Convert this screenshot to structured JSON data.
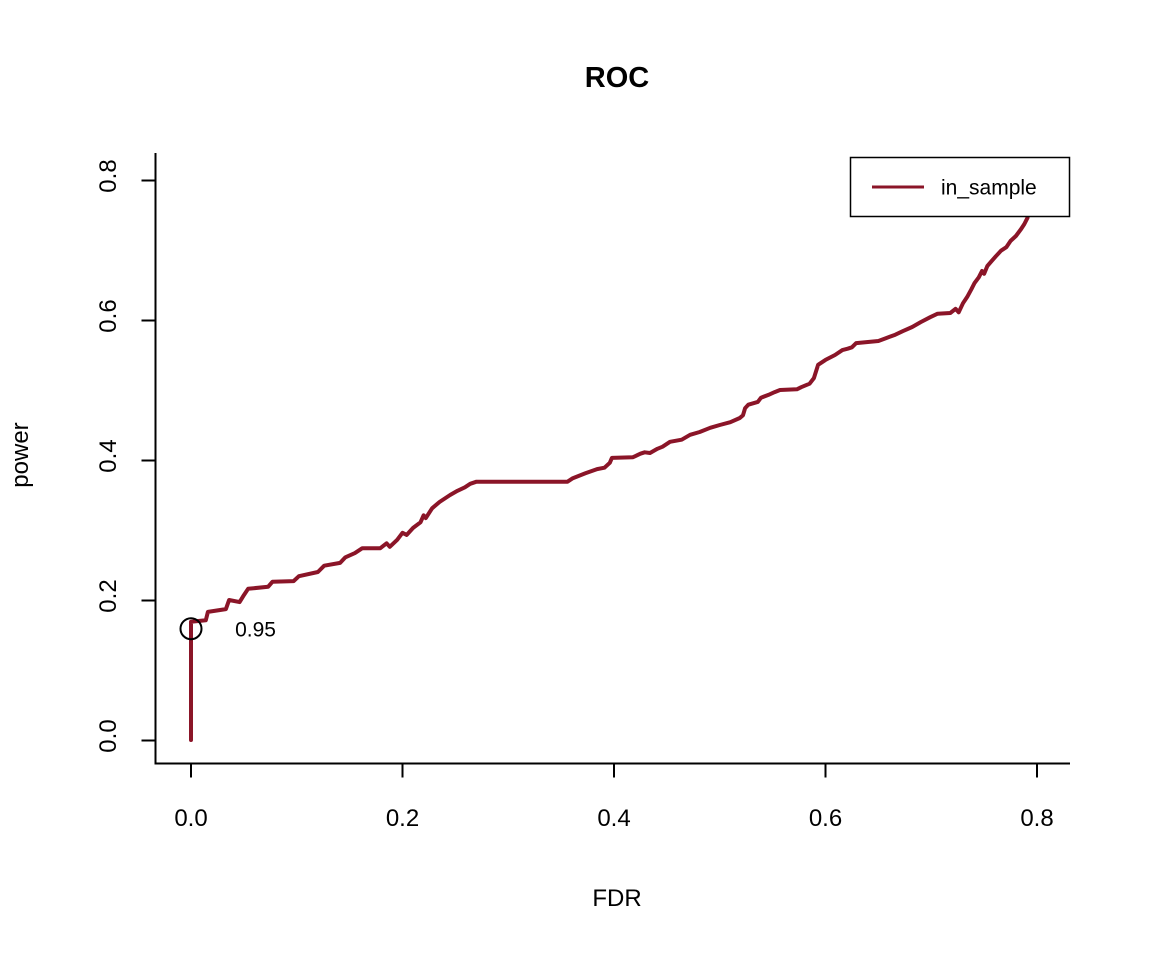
{
  "chart_data": {
    "type": "line",
    "title": "ROC",
    "xlabel": "FDR",
    "ylabel": "power",
    "xlim": [
      -0.03,
      0.83
    ],
    "ylim": [
      -0.03,
      0.84
    ],
    "grid": false,
    "x_tick_values": [
      0.0,
      0.2,
      0.4,
      0.6,
      0.8
    ],
    "x_tick_labels": [
      "0.0",
      "0.2",
      "0.4",
      "0.6",
      "0.8"
    ],
    "y_tick_values": [
      0.0,
      0.2,
      0.4,
      0.6,
      0.8
    ],
    "y_tick_labels": [
      "0.0",
      "0.2",
      "0.4",
      "0.6",
      "0.8"
    ],
    "legend": {
      "position": "top-right",
      "entries": [
        {
          "label": "in_sample",
          "color": "#8B1528"
        }
      ]
    },
    "annotations": [
      {
        "text": "0.95",
        "x": 0.061,
        "y": 0.148,
        "color": "#8B1528"
      }
    ],
    "markers": [
      {
        "shape": "open-circle",
        "x": 0.0,
        "y": 0.159,
        "stroke": "#000000"
      }
    ],
    "series": [
      {
        "name": "in_sample",
        "color": "#8B1528",
        "points": [
          [
            0.0,
            0.0
          ],
          [
            0.0,
            0.169
          ],
          [
            0.014,
            0.171
          ],
          [
            0.016,
            0.183
          ],
          [
            0.033,
            0.187
          ],
          [
            0.036,
            0.2
          ],
          [
            0.046,
            0.197
          ],
          [
            0.05,
            0.207
          ],
          [
            0.054,
            0.216
          ],
          [
            0.073,
            0.219
          ],
          [
            0.077,
            0.226
          ],
          [
            0.097,
            0.227
          ],
          [
            0.102,
            0.234
          ],
          [
            0.12,
            0.24
          ],
          [
            0.126,
            0.249
          ],
          [
            0.141,
            0.253
          ],
          [
            0.146,
            0.261
          ],
          [
            0.155,
            0.267
          ],
          [
            0.162,
            0.274
          ],
          [
            0.179,
            0.274
          ],
          [
            0.185,
            0.281
          ],
          [
            0.188,
            0.276
          ],
          [
            0.195,
            0.286
          ],
          [
            0.2,
            0.296
          ],
          [
            0.204,
            0.293
          ],
          [
            0.21,
            0.303
          ],
          [
            0.217,
            0.311
          ],
          [
            0.22,
            0.321
          ],
          [
            0.222,
            0.317
          ],
          [
            0.228,
            0.331
          ],
          [
            0.235,
            0.34
          ],
          [
            0.245,
            0.35
          ],
          [
            0.252,
            0.356
          ],
          [
            0.259,
            0.361
          ],
          [
            0.264,
            0.366
          ],
          [
            0.27,
            0.369
          ],
          [
            0.356,
            0.369
          ],
          [
            0.361,
            0.374
          ],
          [
            0.373,
            0.381
          ],
          [
            0.384,
            0.387
          ],
          [
            0.391,
            0.389
          ],
          [
            0.396,
            0.396
          ],
          [
            0.398,
            0.403
          ],
          [
            0.418,
            0.404
          ],
          [
            0.425,
            0.409
          ],
          [
            0.429,
            0.411
          ],
          [
            0.434,
            0.41
          ],
          [
            0.441,
            0.416
          ],
          [
            0.446,
            0.419
          ],
          [
            0.453,
            0.426
          ],
          [
            0.464,
            0.429
          ],
          [
            0.472,
            0.436
          ],
          [
            0.481,
            0.44
          ],
          [
            0.491,
            0.446
          ],
          [
            0.5,
            0.45
          ],
          [
            0.51,
            0.454
          ],
          [
            0.519,
            0.46
          ],
          [
            0.522,
            0.464
          ],
          [
            0.524,
            0.474
          ],
          [
            0.527,
            0.479
          ],
          [
            0.536,
            0.483
          ],
          [
            0.539,
            0.489
          ],
          [
            0.546,
            0.493
          ],
          [
            0.552,
            0.497
          ],
          [
            0.557,
            0.5
          ],
          [
            0.573,
            0.501
          ],
          [
            0.577,
            0.504
          ],
          [
            0.585,
            0.509
          ],
          [
            0.589,
            0.517
          ],
          [
            0.593,
            0.536
          ],
          [
            0.6,
            0.543
          ],
          [
            0.609,
            0.55
          ],
          [
            0.616,
            0.557
          ],
          [
            0.621,
            0.559
          ],
          [
            0.625,
            0.561
          ],
          [
            0.629,
            0.567
          ],
          [
            0.65,
            0.57
          ],
          [
            0.657,
            0.574
          ],
          [
            0.666,
            0.579
          ],
          [
            0.673,
            0.584
          ],
          [
            0.682,
            0.59
          ],
          [
            0.69,
            0.597
          ],
          [
            0.699,
            0.604
          ],
          [
            0.706,
            0.609
          ],
          [
            0.718,
            0.61
          ],
          [
            0.723,
            0.616
          ],
          [
            0.726,
            0.611
          ],
          [
            0.73,
            0.624
          ],
          [
            0.734,
            0.633
          ],
          [
            0.738,
            0.644
          ],
          [
            0.741,
            0.653
          ],
          [
            0.745,
            0.661
          ],
          [
            0.748,
            0.67
          ],
          [
            0.75,
            0.666
          ],
          [
            0.753,
            0.677
          ],
          [
            0.757,
            0.684
          ],
          [
            0.761,
            0.691
          ],
          [
            0.766,
            0.699
          ],
          [
            0.771,
            0.704
          ],
          [
            0.775,
            0.713
          ],
          [
            0.78,
            0.72
          ],
          [
            0.785,
            0.73
          ],
          [
            0.788,
            0.737
          ],
          [
            0.791,
            0.746
          ]
        ]
      }
    ]
  }
}
